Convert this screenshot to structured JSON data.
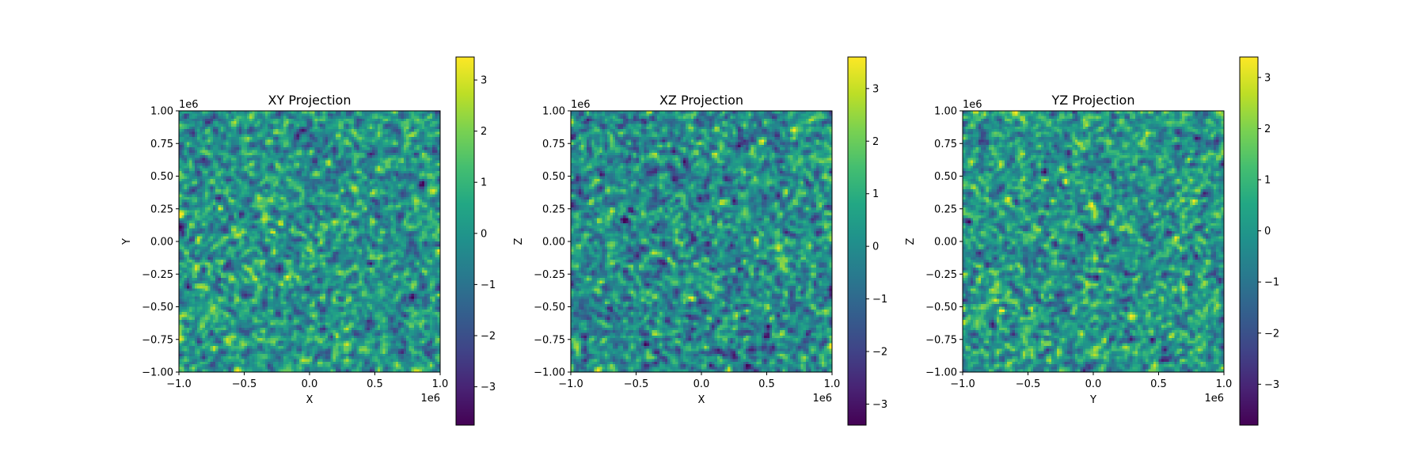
{
  "chart_data": [
    {
      "type": "heatmap",
      "title": "XY Projection",
      "xlabel": "X",
      "ylabel": "Y",
      "xlim": [
        -1000000,
        1000000
      ],
      "ylim": [
        -1000000,
        1000000
      ],
      "offset_label_x": "1e6",
      "offset_label_y": "1e6",
      "x_ticks": [
        -1.0,
        -0.5,
        0.0,
        0.5,
        1.0
      ],
      "x_tick_labels": [
        "−1.0",
        "−0.5",
        "0.0",
        "0.5",
        "1.0"
      ],
      "y_ticks": [
        -1.0,
        -0.75,
        -0.5,
        -0.25,
        0.0,
        0.25,
        0.5,
        0.75,
        1.0
      ],
      "y_tick_labels": [
        "−1.00",
        "−0.75",
        "−0.50",
        "−0.25",
        "0.00",
        "0.25",
        "0.50",
        "0.75",
        "1.00"
      ],
      "grid": false,
      "colormap": "viridis",
      "colorbar": {
        "range": [
          -3.75,
          3.45
        ],
        "ticks": [
          -3,
          -2,
          -1,
          0,
          1,
          2,
          3
        ],
        "tick_labels": [
          "−3",
          "−2",
          "−1",
          "0",
          "1",
          "2",
          "3"
        ]
      },
      "field": "random noise field, values roughly normal with std ~1, 100x100 grid"
    },
    {
      "type": "heatmap",
      "title": "XZ Projection",
      "xlabel": "X",
      "ylabel": "Z",
      "xlim": [
        -1000000,
        1000000
      ],
      "ylim": [
        -1000000,
        1000000
      ],
      "offset_label_x": "1e6",
      "offset_label_y": "1e6",
      "x_ticks": [
        -1.0,
        -0.5,
        0.0,
        0.5,
        1.0
      ],
      "x_tick_labels": [
        "−1.0",
        "−0.5",
        "0.0",
        "0.5",
        "1.0"
      ],
      "y_ticks": [
        -1.0,
        -0.75,
        -0.5,
        -0.25,
        0.0,
        0.25,
        0.5,
        0.75,
        1.0
      ],
      "y_tick_labels": [
        "−1.00",
        "−0.75",
        "−0.50",
        "−0.25",
        "0.00",
        "0.25",
        "0.50",
        "0.75",
        "1.00"
      ],
      "grid": false,
      "colormap": "viridis",
      "colorbar": {
        "range": [
          -3.4,
          3.6
        ],
        "ticks": [
          -3,
          -2,
          -1,
          0,
          1,
          2,
          3
        ],
        "tick_labels": [
          "−3",
          "−2",
          "−1",
          "0",
          "1",
          "2",
          "3"
        ]
      },
      "field": "random noise field, values roughly normal with std ~1, 100x100 grid"
    },
    {
      "type": "heatmap",
      "title": "YZ Projection",
      "xlabel": "Y",
      "ylabel": "Z",
      "xlim": [
        -1000000,
        1000000
      ],
      "ylim": [
        -1000000,
        1000000
      ],
      "offset_label_x": "1e6",
      "offset_label_y": "1e6",
      "x_ticks": [
        -1.0,
        -0.5,
        0.0,
        0.5,
        1.0
      ],
      "x_tick_labels": [
        "−1.0",
        "−0.5",
        "0.0",
        "0.5",
        "1.0"
      ],
      "y_ticks": [
        -1.0,
        -0.75,
        -0.5,
        -0.25,
        0.0,
        0.25,
        0.5,
        0.75,
        1.0
      ],
      "y_tick_labels": [
        "−1.00",
        "−0.75",
        "−0.50",
        "−0.25",
        "0.00",
        "0.25",
        "0.50",
        "0.75",
        "1.00"
      ],
      "grid": false,
      "colormap": "viridis",
      "colorbar": {
        "range": [
          -3.8,
          3.4
        ],
        "ticks": [
          -3,
          -2,
          -1,
          0,
          1,
          2,
          3
        ],
        "tick_labels": [
          "−3",
          "−2",
          "−1",
          "0",
          "1",
          "2",
          "3"
        ]
      },
      "field": "random noise field, values roughly normal with std ~1, 100x100 grid"
    }
  ]
}
